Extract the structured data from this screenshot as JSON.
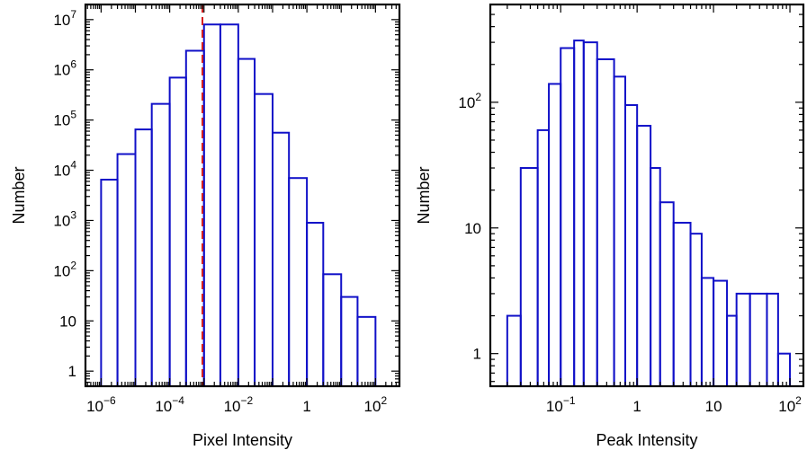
{
  "chart_data": [
    {
      "type": "bar",
      "xlabel": "Pixel Intensity",
      "ylabel": "Number",
      "x_scale": "log",
      "y_scale": "log",
      "xlim": [
        3.5e-07,
        500
      ],
      "ylim": [
        0.5,
        20000000
      ],
      "bin_edges": [
        1e-06,
        3e-06,
        1e-05,
        3e-05,
        0.0001,
        0.0003,
        0.001,
        0.003,
        0.01,
        0.03,
        0.1,
        0.3,
        1,
        3,
        10,
        30,
        100
      ],
      "values": [
        6500,
        21000,
        65000,
        210000,
        700000,
        2400000,
        8000000,
        8000000,
        1650000,
        330000,
        56000,
        7000,
        900,
        85,
        30,
        12
      ],
      "reference_line_x": 0.0009,
      "x_ticks": [
        {
          "value": 1e-06,
          "base": "10",
          "exp": "−6"
        },
        {
          "value": 0.0001,
          "base": "10",
          "exp": "−4"
        },
        {
          "value": 0.01,
          "base": "10",
          "exp": "−2"
        },
        {
          "value": 1,
          "base": "1",
          "exp": ""
        },
        {
          "value": 100,
          "base": "10",
          "exp": "2"
        }
      ],
      "y_ticks": [
        {
          "value": 1,
          "base": "1",
          "exp": ""
        },
        {
          "value": 10,
          "base": "10",
          "exp": ""
        },
        {
          "value": 100,
          "base": "10",
          "exp": "2"
        },
        {
          "value": 1000,
          "base": "10",
          "exp": "3"
        },
        {
          "value": 10000,
          "base": "10",
          "exp": "4"
        },
        {
          "value": 100000,
          "base": "10",
          "exp": "5"
        },
        {
          "value": 1000000,
          "base": "10",
          "exp": "6"
        },
        {
          "value": 10000000,
          "base": "10",
          "exp": "7"
        }
      ],
      "colors": {
        "bars": "#1010c8",
        "reference_line": "#d62020"
      }
    },
    {
      "type": "bar",
      "xlabel": "Peak Intensity",
      "ylabel": "Number",
      "x_scale": "log",
      "y_scale": "log",
      "xlim": [
        0.012,
        150
      ],
      "ylim": [
        0.55,
        600
      ],
      "bin_edges": [
        0.02,
        0.03,
        0.05,
        0.07,
        0.1,
        0.15,
        0.2,
        0.3,
        0.5,
        0.7,
        1,
        1.5,
        2,
        3,
        5,
        7,
        10,
        15,
        20,
        30,
        50,
        70,
        100
      ],
      "values": [
        2,
        30,
        60,
        140,
        270,
        310,
        300,
        220,
        160,
        95,
        65,
        30,
        16,
        11,
        9,
        4,
        3.8,
        2,
        3,
        3,
        3,
        1
      ],
      "x_ticks": [
        {
          "value": 0.1,
          "base": "10",
          "exp": "−1"
        },
        {
          "value": 1,
          "base": "1",
          "exp": ""
        },
        {
          "value": 10,
          "base": "10",
          "exp": ""
        },
        {
          "value": 100,
          "base": "10",
          "exp": "2"
        }
      ],
      "y_ticks": [
        {
          "value": 1,
          "base": "1",
          "exp": ""
        },
        {
          "value": 10,
          "base": "10",
          "exp": ""
        },
        {
          "value": 100,
          "base": "10",
          "exp": "2"
        }
      ],
      "colors": {
        "bars": "#1010c8"
      }
    }
  ]
}
